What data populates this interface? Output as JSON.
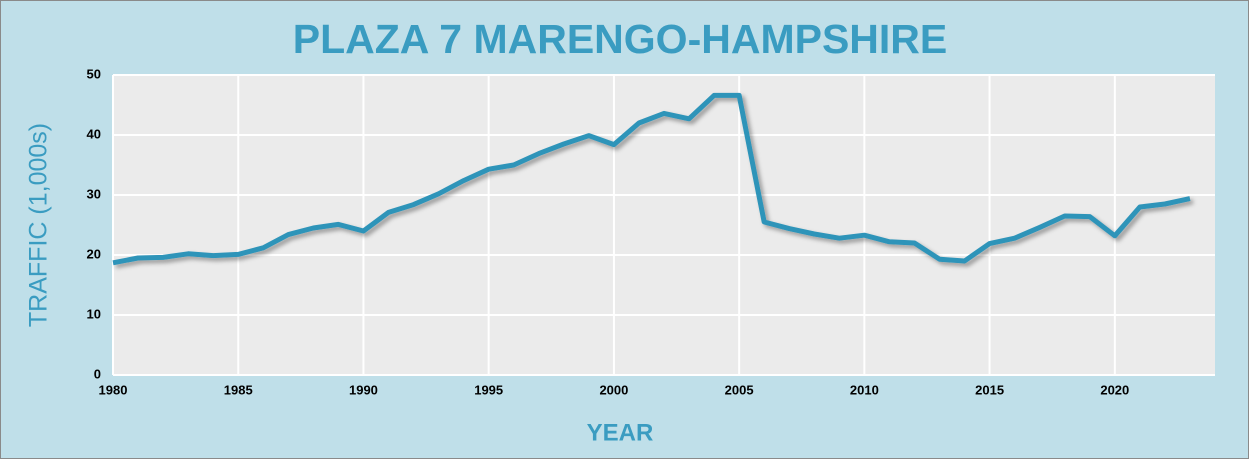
{
  "chart_data": {
    "type": "line",
    "title": "PLAZA 7 MARENGO-HAMPSHIRE",
    "xlabel": "YEAR",
    "ylabel": "TRAFFIC (1,000s)",
    "x": [
      1980,
      1981,
      1982,
      1983,
      1984,
      1985,
      1986,
      1987,
      1988,
      1989,
      1990,
      1991,
      1992,
      1993,
      1994,
      1995,
      1996,
      1997,
      1998,
      1999,
      2000,
      2001,
      2002,
      2003,
      2004,
      2005,
      2006,
      2007,
      2008,
      2009,
      2010,
      2011,
      2012,
      2013,
      2014,
      2015,
      2016,
      2017,
      2018,
      2019,
      2020,
      2021,
      2022,
      2023
    ],
    "values": [
      18.7,
      19.5,
      19.6,
      20.2,
      19.9,
      20.1,
      21.2,
      23.4,
      24.5,
      25.1,
      24.0,
      27.1,
      28.4,
      30.2,
      32.4,
      34.3,
      35.0,
      36.9,
      38.5,
      39.9,
      38.4,
      42.0,
      43.6,
      42.7,
      46.6,
      46.6,
      25.5,
      24.4,
      23.5,
      22.8,
      23.3,
      22.2,
      22.0,
      19.3,
      19.0,
      21.9,
      22.8,
      24.6,
      26.5,
      26.4,
      23.2,
      28.0,
      28.5,
      29.4
    ],
    "color": "#2e94b9",
    "xlim": [
      1980,
      2024
    ],
    "xticks": [
      1980,
      1985,
      1990,
      1995,
      2000,
      2005,
      2010,
      2015,
      2020
    ],
    "ylim": [
      0,
      50
    ],
    "yticks": [
      0,
      10,
      20,
      30,
      40,
      50
    ],
    "grid": true
  }
}
